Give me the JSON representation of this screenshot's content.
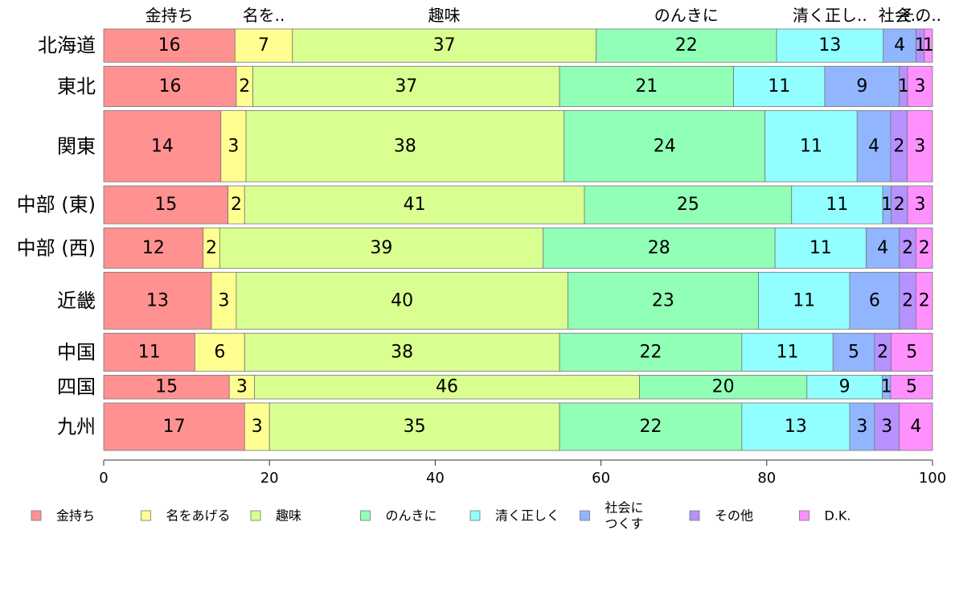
{
  "chart_data": {
    "type": "bar",
    "orientation": "horizontal",
    "stacked": true,
    "variable_width": true,
    "xlim": [
      0,
      100
    ],
    "xticks": [
      "0",
      "20",
      "40",
      "60",
      "80",
      "100"
    ],
    "grid": false,
    "legend_position": "bottom",
    "top_labels": [
      "金持ち",
      "名を..",
      "趣味",
      "のんきに",
      "清く正し..",
      "社会..",
      "その..",
      ""
    ],
    "categories": [
      "北海道",
      "東北",
      "関東",
      "中部 (東)",
      "中部 (西)",
      "近畿",
      "中国",
      "四国",
      "九州"
    ],
    "category_weights": [
      0.7,
      0.85,
      1.5,
      0.8,
      0.85,
      1.2,
      0.8,
      0.5,
      1.0
    ],
    "series": [
      {
        "name": "金持ち",
        "legend": [
          "金持ち"
        ],
        "color": "#ff9191",
        "values": [
          16,
          16,
          14,
          15,
          12,
          13,
          11,
          15,
          17
        ]
      },
      {
        "name": "名をあげる",
        "legend": [
          "名をあげる"
        ],
        "color": "#ffff91",
        "values": [
          7,
          2,
          3,
          2,
          2,
          3,
          6,
          3,
          3
        ]
      },
      {
        "name": "趣味",
        "legend": [
          "趣味"
        ],
        "color": "#daff91",
        "values": [
          37,
          37,
          38,
          41,
          39,
          40,
          38,
          46,
          35
        ]
      },
      {
        "name": "のんきに",
        "legend": [
          "のんきに"
        ],
        "color": "#91ffb6",
        "values": [
          22,
          21,
          24,
          25,
          28,
          23,
          22,
          20,
          22
        ]
      },
      {
        "name": "清く正しく",
        "legend": [
          "清く正しく"
        ],
        "color": "#91ffff",
        "values": [
          13,
          11,
          11,
          11,
          11,
          11,
          11,
          9,
          13
        ]
      },
      {
        "name": "社会につくす",
        "legend": [
          "社会に",
          "つくす"
        ],
        "color": "#91b6ff",
        "values": [
          4,
          9,
          4,
          1,
          4,
          6,
          5,
          1,
          3
        ]
      },
      {
        "name": "その他",
        "legend": [
          "その他"
        ],
        "color": "#b691ff",
        "values": [
          1,
          1,
          2,
          2,
          2,
          2,
          2,
          0,
          3
        ]
      },
      {
        "name": "D.K.",
        "legend": [
          "D.K."
        ],
        "color": "#ff91ff",
        "values": [
          1,
          3,
          3,
          3,
          2,
          2,
          5,
          5,
          4
        ]
      }
    ]
  }
}
